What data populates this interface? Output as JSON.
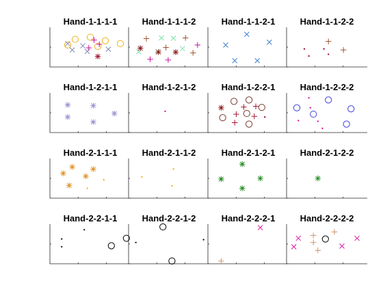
{
  "chart_data": [
    {
      "type": "scatter",
      "title": "Hand-1-1-1-1",
      "xlim": [
        0,
        10
      ],
      "ylim": [
        0,
        10
      ],
      "series": [
        {
          "marker": "o",
          "color": "#EDB120",
          "points": [
            [
              3,
              7.2
            ],
            [
              5,
              7.8
            ],
            [
              7,
              6.8
            ],
            [
              9,
              6
            ],
            [
              2,
              5.6
            ],
            [
              6,
              5.2
            ]
          ]
        },
        {
          "marker": "x",
          "color": "#7E8BB3",
          "points": [
            [
              2,
              6
            ],
            [
              4,
              5.4
            ],
            [
              2.6,
              4.2
            ],
            [
              4.6,
              3.8
            ],
            [
              7.4,
              4.4
            ]
          ]
        },
        {
          "marker": "+",
          "color": "#C4159E",
          "points": [
            [
              5.5,
              7
            ],
            [
              4.8,
              4.8
            ],
            [
              6.2,
              5.8
            ]
          ]
        },
        {
          "marker": "*",
          "color": "#A2142F",
          "points": [
            [
              6,
              2.4
            ]
          ]
        }
      ]
    },
    {
      "type": "scatter",
      "title": "Hand-1-1-1-2",
      "xlim": [
        0,
        10
      ],
      "ylim": [
        0,
        10
      ],
      "series": [
        {
          "marker": "+",
          "color": "#A0522D",
          "points": [
            [
              2,
              7.4
            ],
            [
              7.2,
              7.6
            ],
            [
              8.2,
              3.4
            ],
            [
              4.6,
              4.9
            ]
          ]
        },
        {
          "marker": "x",
          "color": "#7FE0A8",
          "points": [
            [
              4,
              7.6
            ],
            [
              5.6,
              7.5
            ],
            [
              1,
              3.7
            ],
            [
              6.8,
              4.6
            ],
            [
              3.5,
              3.8
            ]
          ]
        },
        {
          "marker": "*",
          "color": "#8B1A1A",
          "points": [
            [
              1.2,
              4.7
            ],
            [
              3.6,
              3.6
            ],
            [
              5.9,
              3.6
            ]
          ]
        },
        {
          "marker": "+",
          "color": "#C4159E",
          "points": [
            [
              2.5,
              1.6
            ],
            [
              4.9,
              1.4
            ],
            [
              8.8,
              5.6
            ]
          ]
        }
      ]
    },
    {
      "type": "scatter",
      "title": "Hand-1-1-2-1",
      "xlim": [
        0,
        10
      ],
      "ylim": [
        0,
        10
      ],
      "series": [
        {
          "marker": "x",
          "color": "#3F7FD0",
          "points": [
            [
              2,
              5.6
            ],
            [
              4.8,
              8.6
            ],
            [
              7.8,
              6.4
            ],
            [
              3.2,
              1.2
            ],
            [
              6.2,
              1.2
            ]
          ]
        }
      ]
    },
    {
      "type": "scatter",
      "title": "Hand-1-1-2-2",
      "xlim": [
        0,
        10
      ],
      "ylim": [
        0,
        10
      ],
      "series": [
        {
          "marker": "+",
          "color": "#A0522D",
          "points": [
            [
              5.2,
              6.6
            ],
            [
              7.2,
              4.2
            ]
          ]
        },
        {
          "marker": ".",
          "color": "#A2142F",
          "points": [
            [
              2,
              4.5
            ],
            [
              4.6,
              4.5
            ],
            [
              5.2,
              3.0
            ],
            [
              2.6,
              2.5
            ]
          ]
        }
      ]
    },
    {
      "type": "scatter",
      "title": "Hand-1-2-1-1",
      "xlim": [
        0,
        10
      ],
      "ylim": [
        0,
        10
      ],
      "series": [
        {
          "marker": "*",
          "color": "#9A8FD0",
          "points": [
            [
              2,
              7.2
            ],
            [
              5.4,
              7.0
            ],
            [
              8.2,
              4.8
            ],
            [
              2,
              3.8
            ],
            [
              5.4,
              2.4
            ]
          ]
        }
      ]
    },
    {
      "type": "scatter",
      "title": "Hand-1-2-1-2",
      "xlim": [
        0,
        10
      ],
      "ylim": [
        0,
        10
      ],
      "series": [
        {
          "marker": ".",
          "color": "#E0149E",
          "points": [
            [
              4.5,
              5.4
            ]
          ]
        }
      ]
    },
    {
      "type": "scatter",
      "title": "Hand-1-2-2-1",
      "xlim": [
        0,
        10
      ],
      "ylim": [
        0,
        10
      ],
      "series": [
        {
          "marker": "*",
          "color": "#8B1A1A",
          "points": [
            [
              1.4,
              6.4
            ]
          ]
        },
        {
          "marker": "o",
          "color": "#7A3B2E",
          "points": [
            [
              3.1,
              8.2
            ],
            [
              5.1,
              8.6
            ],
            [
              6.8,
              6.5
            ],
            [
              4.8,
              4.8
            ],
            [
              1.6,
              3.6
            ],
            [
              5.1,
              1.8
            ]
          ]
        },
        {
          "marker": "+",
          "color": "#A2142F",
          "points": [
            [
              4.4,
              6.6
            ],
            [
              6,
              6.8
            ],
            [
              3.4,
              4.6
            ],
            [
              5.8,
              4.0
            ],
            [
              3.2,
              2.2
            ]
          ]
        },
        {
          "marker": ".",
          "color": "#A2142F",
          "points": [
            [
              7.2,
              3.8
            ]
          ]
        }
      ]
    },
    {
      "type": "scatter",
      "title": "Hand-1-2-2-2",
      "xlim": [
        0,
        10
      ],
      "ylim": [
        0,
        10
      ],
      "series": [
        {
          "marker": "o",
          "color": "#4040E0",
          "points": [
            [
              1,
              6.4
            ],
            [
              5.2,
              8.6
            ],
            [
              8.2,
              6.1
            ],
            [
              3.2,
              4.6
            ],
            [
              7.6,
              1.8
            ]
          ]
        },
        {
          "marker": ".",
          "color": "#E0149E",
          "points": [
            [
              2.6,
              9.2
            ],
            [
              2.8,
              6.4
            ],
            [
              1.2,
              2.8
            ],
            [
              3.8,
              2.6
            ],
            [
              4.4,
              0.6
            ]
          ]
        }
      ]
    },
    {
      "type": "scatter",
      "title": "Hand-2-1-1-1",
      "xlim": [
        0,
        10
      ],
      "ylim": [
        0,
        10
      ],
      "series": [
        {
          "marker": "*",
          "color": "#E09020",
          "points": [
            [
              2.6,
              8.2
            ],
            [
              5.4,
              7.6
            ],
            [
              1.4,
              6.4
            ],
            [
              4.4,
              5.6
            ],
            [
              2.2,
              3.0
            ]
          ]
        },
        {
          "marker": ".",
          "color": "#EDB120",
          "points": [
            [
              6.8,
              4.6
            ],
            [
              4.6,
              2.2
            ]
          ]
        }
      ]
    },
    {
      "type": "scatter",
      "title": "Hand-2-1-1-2",
      "xlim": [
        0,
        10
      ],
      "ylim": [
        0,
        10
      ],
      "series": [
        {
          "marker": ".",
          "color": "#EDB120",
          "points": [
            [
              1.4,
              5.4
            ],
            [
              5.6,
              7.6
            ],
            [
              5.4,
              2.9
            ]
          ]
        }
      ]
    },
    {
      "type": "scatter",
      "title": "Hand-2-1-2-1",
      "xlim": [
        0,
        10
      ],
      "ylim": [
        0,
        10
      ],
      "series": [
        {
          "marker": "*",
          "color": "#228B22",
          "points": [
            [
              4.2,
              9
            ],
            [
              1.4,
              4.8
            ],
            [
              6.6,
              5.0
            ],
            [
              4.2,
              2.2
            ]
          ]
        }
      ]
    },
    {
      "type": "scatter",
      "title": "Hand-2-1-2-2",
      "xlim": [
        0,
        10
      ],
      "ylim": [
        0,
        10
      ],
      "series": [
        {
          "marker": "*",
          "color": "#228B22",
          "points": [
            [
              3.8,
              5.0
            ]
          ]
        }
      ]
    },
    {
      "type": "scatter",
      "title": "Hand-2-2-1-1",
      "xlim": [
        0,
        10
      ],
      "ylim": [
        0,
        10
      ],
      "series": [
        {
          "marker": ".",
          "color": "#202040",
          "points": [
            [
              4.2,
              9.0
            ],
            [
              1.2,
              6.4
            ],
            [
              1.2,
              4.2
            ]
          ]
        },
        {
          "marker": "o",
          "color": "#000000",
          "points": [
            [
              7.8,
              4.5
            ],
            [
              9.8,
              6.6
            ]
          ]
        }
      ]
    },
    {
      "type": "scatter",
      "title": "Hand-2-2-1-2",
      "xlim": [
        0,
        10
      ],
      "ylim": [
        0,
        10
      ],
      "series": [
        {
          "marker": "o",
          "color": "#000000",
          "points": [
            [
              4.2,
              9.8
            ],
            [
              5.4,
              0.2
            ]
          ]
        },
        {
          "marker": ".",
          "color": "#202040",
          "points": [
            [
              0.6,
              5.4
            ],
            [
              9.6,
              6.2
            ]
          ]
        }
      ]
    },
    {
      "type": "scatter",
      "title": "Hand-2-2-2-1",
      "xlim": [
        0,
        10
      ],
      "ylim": [
        0,
        10
      ],
      "series": [
        {
          "marker": "x",
          "color": "#E0149E",
          "points": [
            [
              6.6,
              9.6
            ]
          ]
        },
        {
          "marker": "+",
          "color": "#D2916A",
          "points": [
            [
              1.4,
              0.2
            ]
          ]
        }
      ]
    },
    {
      "type": "scatter",
      "title": "Hand-2-2-2-2",
      "xlim": [
        0,
        10
      ],
      "ylim": [
        0,
        10
      ],
      "series": [
        {
          "marker": "x",
          "color": "#E0149E",
          "points": [
            [
              0.6,
              4.2
            ],
            [
              1.2,
              6.6
            ],
            [
              7.0,
              4.4
            ],
            [
              9.0,
              6.6
            ]
          ]
        },
        {
          "marker": "+",
          "color": "#D2916A",
          "points": [
            [
              3.2,
              7.4
            ],
            [
              6.0,
              8.4
            ],
            [
              3.2,
              5.4
            ],
            [
              3.8,
              3.2
            ]
          ]
        },
        {
          "marker": "o",
          "color": "#000000",
          "points": [
            [
              4.8,
              6.4
            ]
          ]
        }
      ]
    }
  ]
}
